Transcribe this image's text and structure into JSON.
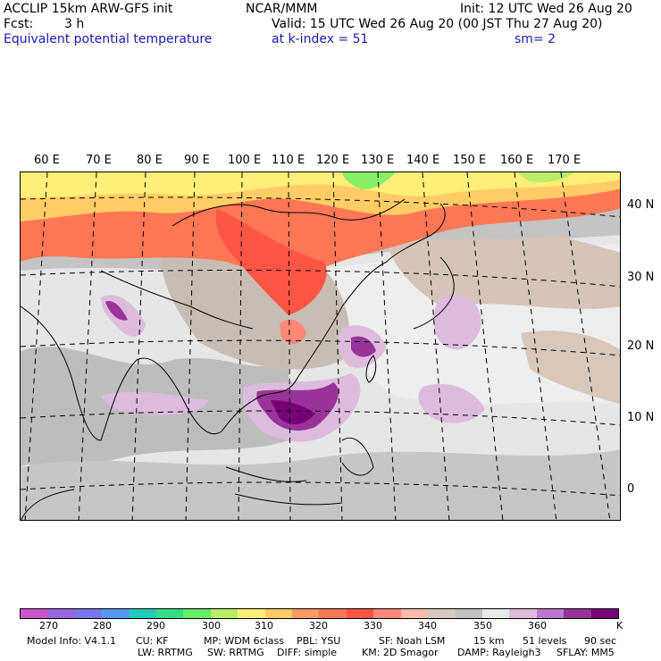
{
  "header": {
    "model": "ACCLIP 15km ARW-GFS init",
    "org": "NCAR/MMM",
    "init": "Init: 12 UTC Wed 26 Aug 20",
    "fcst_label": "Fcst:",
    "fcst_value": "3 h",
    "valid": "Valid: 15 UTC Wed 26 Aug 20 (00 JST Thu 27 Aug 20)",
    "field": "Equivalent potential temperature",
    "level": "at k-index =  51",
    "smoothing": "sm= 2"
  },
  "map": {
    "lon_labels": [
      "60 E",
      "70 E",
      "80 E",
      "90 E",
      "100 E",
      "110 E",
      "120 E",
      "130 E",
      "140 E",
      "150 E",
      "160 E",
      "170 E"
    ],
    "lat_labels": [
      "40 N",
      "30 N",
      "20 N",
      "10 N",
      "0"
    ]
  },
  "colorbar": {
    "colors": [
      "#cc55cc",
      "#9966dd",
      "#7777ee",
      "#5599ee",
      "#22ccbb",
      "#33dd88",
      "#66ee66",
      "#bbee66",
      "#ffee77",
      "#ffcc66",
      "#ff9966",
      "#ff7755",
      "#ff5544",
      "#ff8877",
      "#ffbbaa",
      "#d8c8c0",
      "#c0c0c0",
      "#e8e8e8",
      "#ddbbdd",
      "#bb77cc",
      "#993399",
      "#770077"
    ],
    "ticks": [
      "270",
      "280",
      "290",
      "300",
      "310",
      "320",
      "330",
      "340",
      "350",
      "360"
    ],
    "unit": "K"
  },
  "footer": {
    "line1": [
      "Model Info: V4.1.1",
      "CU: KF",
      "MP: WDM 6class",
      "PBL: YSU",
      "SF: Noah LSM",
      "15 km",
      "51 levels",
      "90 sec"
    ],
    "line2": [
      "LW: RRTMG",
      "SW: RRTMG",
      "DIFF: simple",
      "KM: 2D Smagor",
      "DAMP: Rayleigh3",
      "SFLAY: MM5"
    ]
  }
}
